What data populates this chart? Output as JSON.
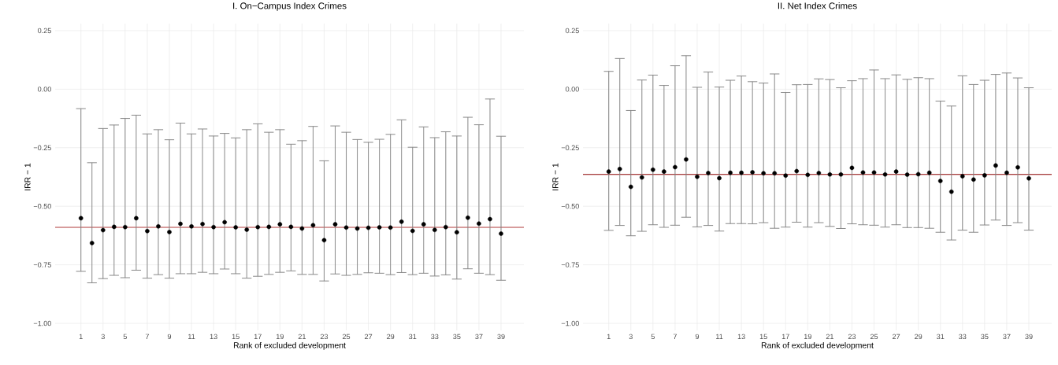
{
  "chart_data": [
    {
      "type": "scatter",
      "title": "I. On−Campus Index Crimes",
      "xlabel": "Rank of excluded development",
      "ylabel": "IRR − 1",
      "categories": [
        "1",
        null,
        "3",
        null,
        "5",
        null,
        "7",
        null,
        "9",
        null,
        "11",
        null,
        "13",
        null,
        "15",
        null,
        "17",
        null,
        "19",
        null,
        "21",
        null,
        "23",
        null,
        "25",
        null,
        "27",
        null,
        "29",
        null,
        "31",
        null,
        "33",
        null,
        "35",
        null,
        "37",
        null,
        "39"
      ],
      "values": [
        -0.551,
        -0.657,
        -0.602,
        -0.588,
        -0.589,
        -0.551,
        -0.606,
        -0.586,
        -0.61,
        -0.575,
        -0.586,
        -0.576,
        -0.589,
        -0.568,
        -0.59,
        -0.6,
        -0.589,
        -0.588,
        -0.577,
        -0.588,
        -0.595,
        -0.581,
        -0.645,
        -0.577,
        -0.591,
        -0.595,
        -0.592,
        -0.59,
        -0.591,
        -0.566,
        -0.605,
        -0.577,
        -0.601,
        -0.589,
        -0.611,
        -0.549,
        -0.574,
        -0.555,
        -0.617
      ],
      "errors": [
        [
          -0.778,
          -0.083
        ],
        [
          -0.827,
          -0.314
        ],
        [
          -0.809,
          -0.168
        ],
        [
          -0.795,
          -0.153
        ],
        [
          -0.805,
          -0.125
        ],
        [
          -0.773,
          -0.111
        ],
        [
          -0.807,
          -0.191
        ],
        [
          -0.792,
          -0.173
        ],
        [
          -0.807,
          -0.216
        ],
        [
          -0.788,
          -0.145
        ],
        [
          -0.788,
          -0.191
        ],
        [
          -0.782,
          -0.17
        ],
        [
          -0.788,
          -0.2
        ],
        [
          -0.768,
          -0.189
        ],
        [
          -0.788,
          -0.208
        ],
        [
          -0.807,
          -0.173
        ],
        [
          -0.799,
          -0.148
        ],
        [
          -0.791,
          -0.184
        ],
        [
          -0.782,
          -0.173
        ],
        [
          -0.776,
          -0.235
        ],
        [
          -0.791,
          -0.22
        ],
        [
          -0.791,
          -0.159
        ],
        [
          -0.819,
          -0.306
        ],
        [
          -0.789,
          -0.157
        ],
        [
          -0.795,
          -0.184
        ],
        [
          -0.791,
          -0.215
        ],
        [
          -0.784,
          -0.227
        ],
        [
          -0.786,
          -0.214
        ],
        [
          -0.792,
          -0.193
        ],
        [
          -0.783,
          -0.131
        ],
        [
          -0.792,
          -0.248
        ],
        [
          -0.786,
          -0.161
        ],
        [
          -0.798,
          -0.207
        ],
        [
          -0.793,
          -0.182
        ],
        [
          -0.811,
          -0.2
        ],
        [
          -0.767,
          -0.12
        ],
        [
          -0.786,
          -0.152
        ],
        [
          -0.792,
          -0.042
        ],
        [
          -0.816,
          -0.201
        ]
      ],
      "color": "#000000",
      "grid": true,
      "ref_lines": [
        {
          "axis": "y",
          "value": -0.59,
          "color": "#b03a3a"
        }
      ],
      "ylim": [
        -1.03,
        0.28
      ],
      "yticks": [
        {
          "value": -1.0,
          "label": "−1.00"
        },
        {
          "value": -0.75,
          "label": "−0.75"
        },
        {
          "value": -0.5,
          "label": "−0.50"
        },
        {
          "value": -0.25,
          "label": "−0.25"
        },
        {
          "value": 0.0,
          "label": "0.00"
        },
        {
          "value": 0.25,
          "label": "0.25"
        }
      ]
    },
    {
      "type": "scatter",
      "title": "II. Net Index Crimes",
      "xlabel": "Rank of excluded development",
      "ylabel": "IRR − 1",
      "categories": [
        "1",
        null,
        "3",
        null,
        "5",
        null,
        "7",
        null,
        "9",
        null,
        "11",
        null,
        "13",
        null,
        "15",
        null,
        "17",
        null,
        "19",
        null,
        "21",
        null,
        "23",
        null,
        "25",
        null,
        "27",
        null,
        "29",
        null,
        "31",
        null,
        "33",
        null,
        "35",
        null,
        "37",
        null,
        "39"
      ],
      "values": [
        -0.352,
        -0.341,
        -0.417,
        -0.377,
        -0.344,
        -0.352,
        -0.333,
        -0.3,
        -0.374,
        -0.358,
        -0.38,
        -0.357,
        -0.357,
        -0.355,
        -0.359,
        -0.359,
        -0.369,
        -0.35,
        -0.366,
        -0.358,
        -0.364,
        -0.364,
        -0.336,
        -0.356,
        -0.356,
        -0.364,
        -0.352,
        -0.365,
        -0.363,
        -0.357,
        -0.392,
        -0.438,
        -0.372,
        -0.386,
        -0.368,
        -0.326,
        -0.357,
        -0.334,
        -0.381
      ],
      "errors": [
        [
          -0.603,
          0.076
        ],
        [
          -0.582,
          0.131
        ],
        [
          -0.626,
          -0.091
        ],
        [
          -0.607,
          0.039
        ],
        [
          -0.579,
          0.06
        ],
        [
          -0.59,
          0.016
        ],
        [
          -0.581,
          0.1
        ],
        [
          -0.547,
          0.143
        ],
        [
          -0.588,
          0.008
        ],
        [
          -0.582,
          0.073
        ],
        [
          -0.606,
          0.009
        ],
        [
          -0.574,
          0.038
        ],
        [
          -0.574,
          0.056
        ],
        [
          -0.575,
          0.032
        ],
        [
          -0.57,
          0.026
        ],
        [
          -0.594,
          0.065
        ],
        [
          -0.589,
          -0.014
        ],
        [
          -0.568,
          0.019
        ],
        [
          -0.589,
          0.02
        ],
        [
          -0.57,
          0.044
        ],
        [
          -0.586,
          0.041
        ],
        [
          -0.595,
          0.006
        ],
        [
          -0.575,
          0.036
        ],
        [
          -0.579,
          0.045
        ],
        [
          -0.581,
          0.082
        ],
        [
          -0.589,
          0.045
        ],
        [
          -0.579,
          0.061
        ],
        [
          -0.591,
          0.042
        ],
        [
          -0.591,
          0.049
        ],
        [
          -0.594,
          0.045
        ],
        [
          -0.611,
          -0.051
        ],
        [
          -0.644,
          -0.072
        ],
        [
          -0.602,
          0.057
        ],
        [
          -0.611,
          0.02
        ],
        [
          -0.58,
          0.038
        ],
        [
          -0.559,
          0.063
        ],
        [
          -0.582,
          0.069
        ],
        [
          -0.57,
          0.048
        ],
        [
          -0.602,
          0.006
        ]
      ],
      "color": "#000000",
      "grid": true,
      "ref_lines": [
        {
          "axis": "y",
          "value": -0.364,
          "color": "#8b0000"
        }
      ],
      "ylim": [
        -1.03,
        0.28
      ],
      "yticks": [
        {
          "value": -1.0,
          "label": "−1.00"
        },
        {
          "value": -0.75,
          "label": "−0.75"
        },
        {
          "value": -0.5,
          "label": "−0.50"
        },
        {
          "value": -0.25,
          "label": "−0.25"
        },
        {
          "value": 0.0,
          "label": "0.00"
        },
        {
          "value": 0.25,
          "label": "0.25"
        }
      ]
    }
  ]
}
